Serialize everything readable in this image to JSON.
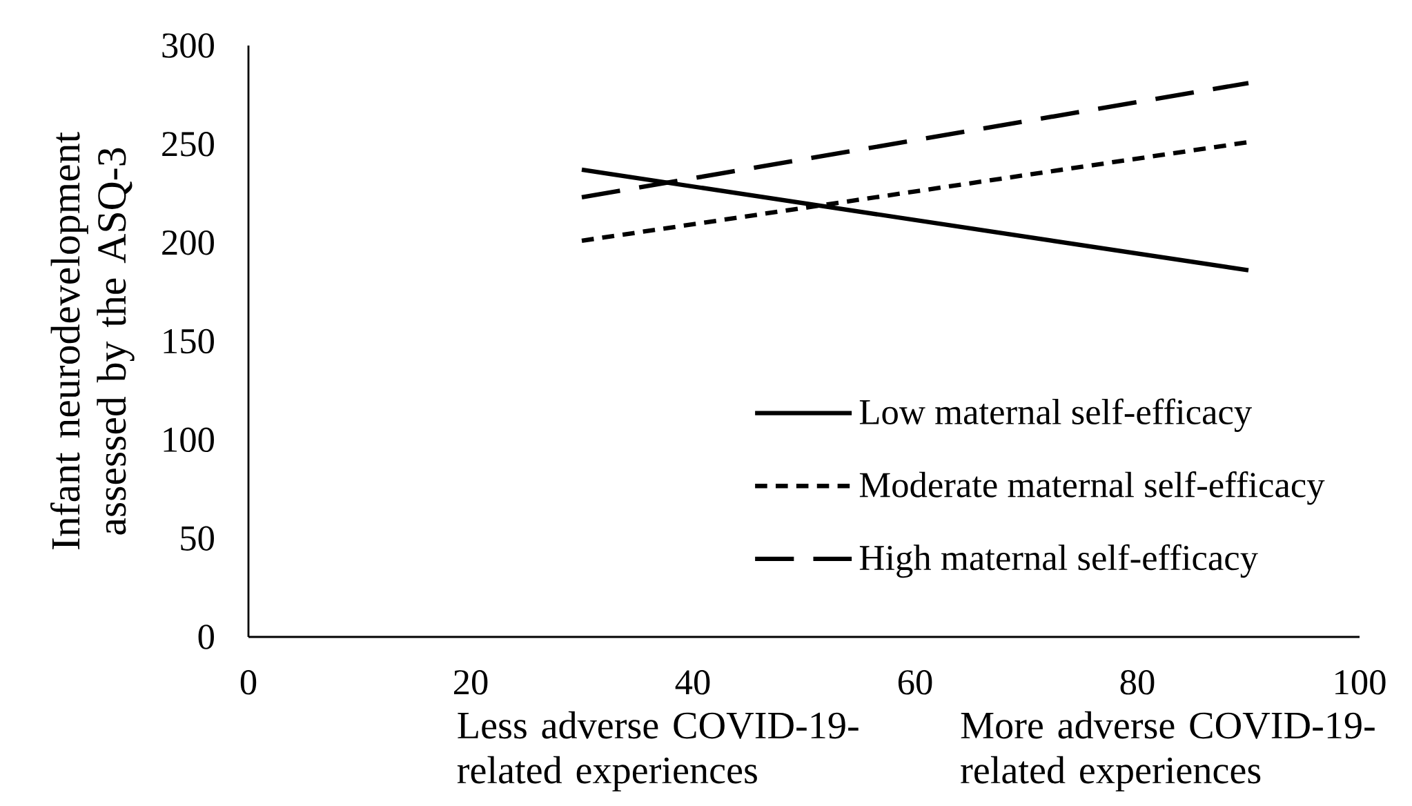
{
  "chart_data": {
    "type": "line",
    "ylabel": "Infant neurodevelopment assessed by the ASQ-3",
    "x": [
      30,
      90
    ],
    "series": [
      {
        "name": "Low maternal self-efficacy",
        "color": "#000000",
        "line_style": "solid",
        "values": [
          237,
          186
        ]
      },
      {
        "name": "Moderate maternal self-efficacy",
        "color": "#000000",
        "line_style": "dotted",
        "values": [
          201,
          251
        ]
      },
      {
        "name": "High maternal self-efficacy",
        "color": "#000000",
        "line_style": "dashed",
        "values": [
          223,
          281
        ]
      }
    ],
    "xlim": [
      0,
      100
    ],
    "xticks": [
      0,
      20,
      40,
      60,
      80,
      100
    ],
    "ylim": [
      0,
      300
    ],
    "yticks": [
      0,
      50,
      100,
      150,
      200,
      250,
      300
    ],
    "legend": "bottom right",
    "grid": false,
    "marker": "none",
    "annotations": [
      "Less adverse COVID-19-related experiences",
      "More adverse COVID-19-related experiences"
    ]
  }
}
